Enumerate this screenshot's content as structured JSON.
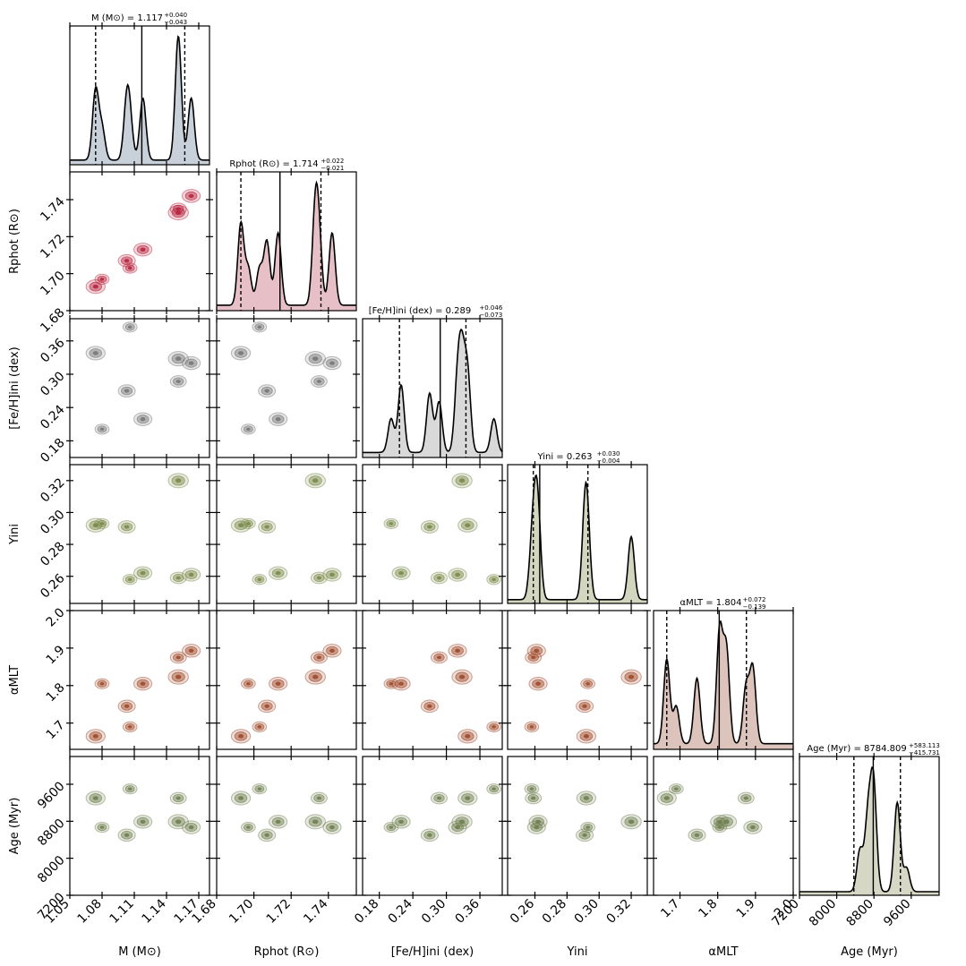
{
  "chart_data": {
    "type": "corner",
    "params": [
      {
        "key": "M",
        "title": "M (M⊙) = 1.117 +0.040 −0.043",
        "title_main": "M (M⊙) = 1.117",
        "plus": "+0.040",
        "minus": "−0.043",
        "xlabel": "M (M⊙)",
        "ylabel": "",
        "range": [
          1.05,
          1.18
        ],
        "ticks": [
          1.05,
          1.08,
          1.11,
          1.14,
          1.17
        ],
        "tick_labels": [
          "1.05",
          "1.08",
          "1.11",
          "1.14",
          "1.17"
        ],
        "median": 1.117,
        "low": 1.074,
        "high": 1.157,
        "color": "#4f7390",
        "fill": "#c8d1da"
      },
      {
        "key": "R",
        "title": "Rphot (R⊙) = 1.714 +0.022 −0.021",
        "title_main": "Rphot (R⊙) = 1.714",
        "plus": "+0.022",
        "minus": "−0.021",
        "xlabel": "Rphot (R⊙)",
        "ylabel": "Rphot (R⊙)",
        "range": [
          1.68,
          1.755
        ],
        "ticks": [
          1.68,
          1.7,
          1.72,
          1.74
        ],
        "tick_labels": [
          "1.68",
          "1.70",
          "1.72",
          "1.74"
        ],
        "median": 1.714,
        "low": 1.693,
        "high": 1.736,
        "color": "#b8253f",
        "fill": "#e6c0c6"
      },
      {
        "key": "FeH",
        "title": "[Fe/H]ini (dex) = 0.289 +0.046 −0.073",
        "title_main": "[Fe/H]ini (dex) = 0.289",
        "plus": "+0.046",
        "minus": "−0.073",
        "xlabel": "[Fe/H]ini (dex)",
        "ylabel": "[Fe/H]ini (dex)",
        "range": [
          0.15,
          0.4
        ],
        "ticks": [
          0.18,
          0.24,
          0.3,
          0.36
        ],
        "tick_labels": [
          "0.18",
          "0.24",
          "0.30",
          "0.36"
        ],
        "median": 0.289,
        "low": 0.216,
        "high": 0.335,
        "color": "#777777",
        "fill": "#d9d9d9"
      },
      {
        "key": "Y",
        "title": "Yini = 0.263 +0.030 −0.004",
        "title_main": "Yini = 0.263",
        "plus": "+0.030",
        "minus": "−0.004",
        "xlabel": "Yini",
        "ylabel": "Yini",
        "range": [
          0.243,
          0.33
        ],
        "ticks": [
          0.26,
          0.28,
          0.3,
          0.32
        ],
        "tick_labels": [
          "0.26",
          "0.28",
          "0.30",
          "0.32"
        ],
        "median": 0.263,
        "low": 0.259,
        "high": 0.293,
        "color": "#7a8a4a",
        "fill": "#d3d6bf"
      },
      {
        "key": "alpha",
        "title": "αMLT = 1.804 +0.072 −0.139",
        "title_main": "αMLT = 1.804",
        "plus": "+0.072",
        "minus": "−0.139",
        "xlabel": "αMLT",
        "ylabel": "αMLT",
        "range": [
          1.63,
          2.0
        ],
        "ticks": [
          1.7,
          1.8,
          1.9,
          2.0
        ],
        "tick_labels": [
          "1.7",
          "1.8",
          "1.9",
          "2.0"
        ],
        "median": 1.804,
        "low": 1.665,
        "high": 1.876,
        "color": "#a04a2a",
        "fill": "#dcc3bb"
      },
      {
        "key": "age",
        "title": "Age (Myr) = 8784.809 +583.113 −415.731",
        "title_main": "Age (Myr) = 8784.809",
        "plus": "+583.113",
        "minus": "−415.731",
        "xlabel": "Age (Myr)",
        "ylabel": "Age (Myr)",
        "range": [
          7200,
          10200
        ],
        "ticks": [
          7200,
          8000,
          8800,
          9600
        ],
        "tick_labels": [
          "7200",
          "8000",
          "8800",
          "9600"
        ],
        "median": 8784.809,
        "low": 8369.078,
        "high": 9367.922,
        "color": "#6f7f4f",
        "fill": "#d6d7c4"
      }
    ],
    "samples": [
      {
        "M": 1.074,
        "R": 1.693,
        "FeH": 0.338,
        "Y": 0.292,
        "alpha": 1.665,
        "age": 9300,
        "w": 0.9
      },
      {
        "M": 1.103,
        "R": 1.707,
        "FeH": 0.27,
        "Y": 0.291,
        "alpha": 1.745,
        "age": 8500,
        "w": 0.7
      },
      {
        "M": 1.118,
        "R": 1.713,
        "FeH": 0.219,
        "Y": 0.262,
        "alpha": 1.805,
        "age": 8790,
        "w": 0.8
      },
      {
        "M": 1.151,
        "R": 1.733,
        "FeH": 0.328,
        "Y": 0.32,
        "alpha": 1.823,
        "age": 8790,
        "w": 1.0
      },
      {
        "M": 1.163,
        "R": 1.742,
        "FeH": 0.32,
        "Y": 0.261,
        "alpha": 1.893,
        "age": 8670,
        "w": 0.8
      },
      {
        "M": 1.151,
        "R": 1.735,
        "FeH": 0.287,
        "Y": 0.259,
        "alpha": 1.875,
        "age": 9300,
        "w": 0.6
      },
      {
        "M": 1.106,
        "R": 1.703,
        "FeH": 0.385,
        "Y": 0.258,
        "alpha": 1.69,
        "age": 9500,
        "w": 0.4
      },
      {
        "M": 1.08,
        "R": 1.697,
        "FeH": 0.201,
        "Y": 0.293,
        "alpha": 1.805,
        "age": 8670,
        "w": 0.4
      }
    ]
  }
}
